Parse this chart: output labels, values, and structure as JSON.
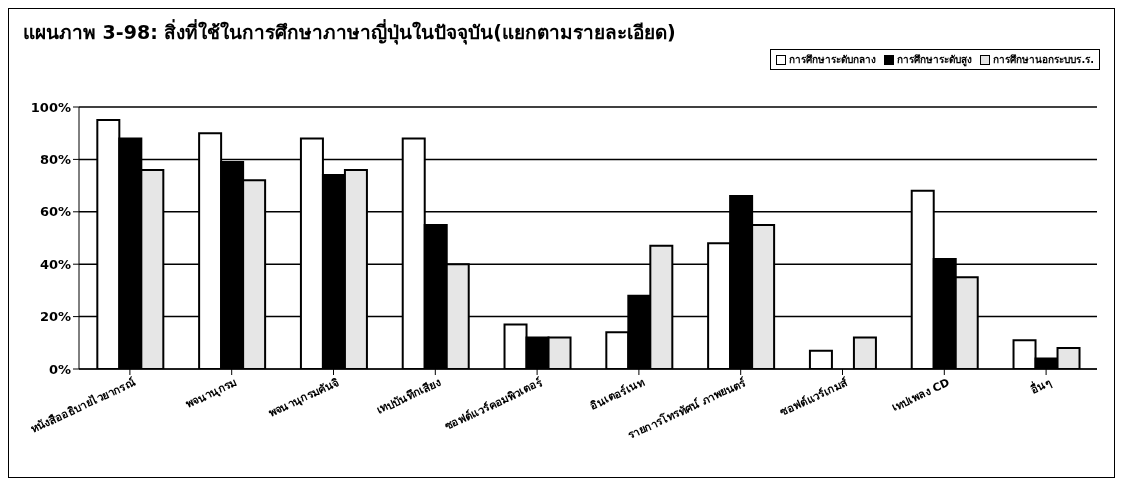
{
  "chart_data": {
    "type": "bar",
    "title": "แผนภาพ 3-98: สิ่งที่ใช้ในการศึกษาภาษาญี่ปุ่นในปัจจุบัน(แยกตามรายละเอียด)",
    "categories": [
      "หนังสืออธิบายไวยากรณ์",
      "พจนานุกรม",
      "พจนานุกรมคันจิ",
      "เทปบันทึกเสียง",
      "ซอฟต์แวร์คอมพิวเตอร์",
      "อินเตอร์เนท",
      "รายการโทรทัศน์ ภาพยนตร์",
      "ซอฟต์แวร์เกมส์",
      "เทปเพลง CD",
      "อื่นๆ"
    ],
    "series": [
      {
        "name": "การศึกษาระดับกลาง",
        "color": "#ffffff",
        "values": [
          95,
          90,
          88,
          88,
          17,
          14,
          48,
          7,
          68,
          11
        ]
      },
      {
        "name": "การศึกษาระดับสูง",
        "color": "#000000",
        "values": [
          88,
          79,
          74,
          55,
          12,
          28,
          66,
          0,
          42,
          4
        ]
      },
      {
        "name": "การศึกษานอกระบบร.ร.",
        "color": "#e6e6e6",
        "values": [
          76,
          72,
          76,
          40,
          12,
          47,
          55,
          12,
          35,
          8
        ]
      }
    ],
    "ylim": [
      0,
      100
    ],
    "yticks": [
      {
        "value": 0,
        "label": "0%"
      },
      {
        "value": 20,
        "label": "20%"
      },
      {
        "value": 40,
        "label": "40%"
      },
      {
        "value": 60,
        "label": "60%"
      },
      {
        "value": 80,
        "label": "80%"
      },
      {
        "value": 100,
        "label": "100%"
      }
    ],
    "grid": "y",
    "legend": "top right"
  }
}
